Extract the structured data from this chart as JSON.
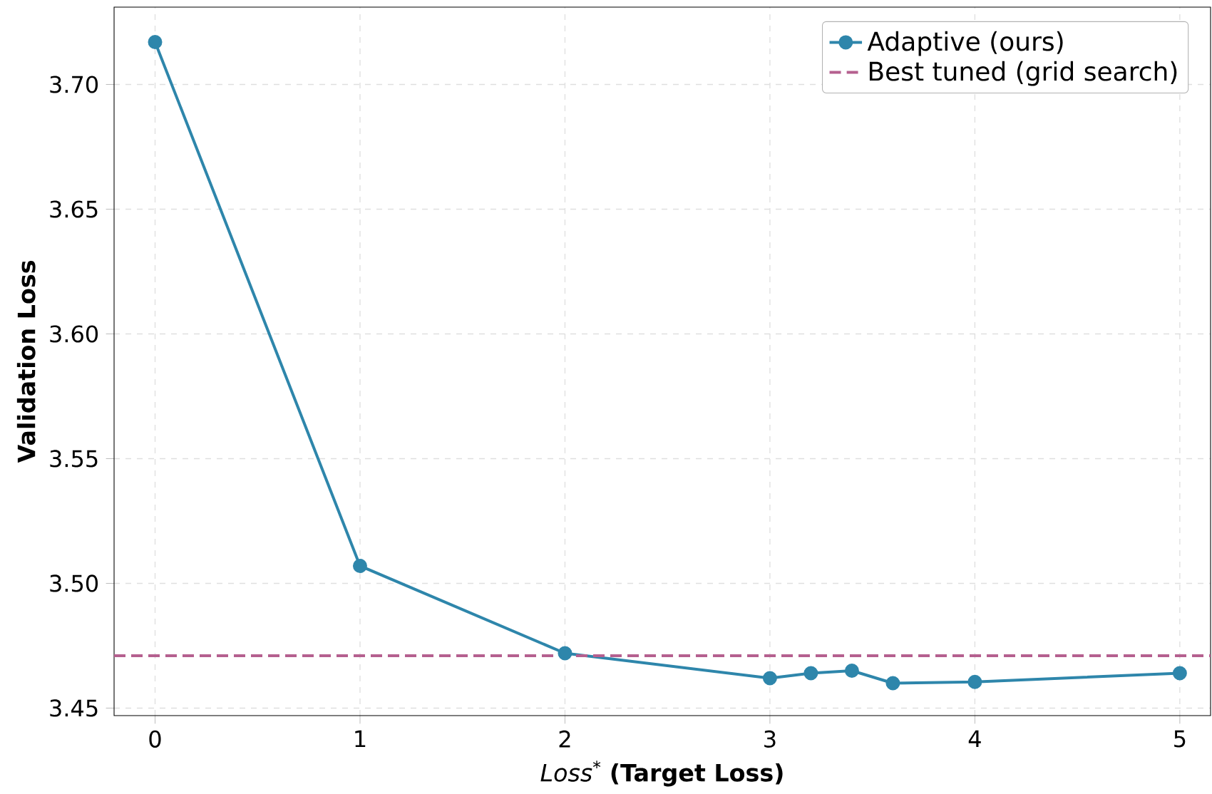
{
  "chart_data": {
    "type": "line",
    "xlabel": "*Loss*$^{*}$ **(Target Loss)**",
    "ylabel": "Validation Loss",
    "x": [
      0,
      1,
      2,
      3,
      3.2,
      3.4,
      3.6,
      4,
      5
    ],
    "series": [
      {
        "name": "Adaptive (ours)",
        "color": "#2e86ab",
        "values": [
          3.717,
          3.507,
          3.472,
          3.462,
          3.464,
          3.465,
          3.46,
          3.4605,
          3.464
        ]
      }
    ],
    "ref_lines": [
      {
        "axis": "y",
        "value": 3.471,
        "label": "Best tuned (grid search)",
        "color": "#b5608f",
        "line_style": "dashed"
      }
    ],
    "xlim": [
      -0.2,
      5.15
    ],
    "ylim": [
      3.447,
      3.731
    ],
    "xticks": [
      0,
      1,
      2,
      3,
      4,
      5
    ],
    "yticks": [
      3.45,
      {
        "value": 3.5,
        "label": "3.50"
      },
      3.55,
      {
        "value": 3.6,
        "label": "3.60"
      },
      3.65,
      {
        "value": 3.7,
        "label": "3.70"
      }
    ],
    "grid": true,
    "legend": "top right",
    "marker": "circle",
    "line_style": "solid"
  }
}
